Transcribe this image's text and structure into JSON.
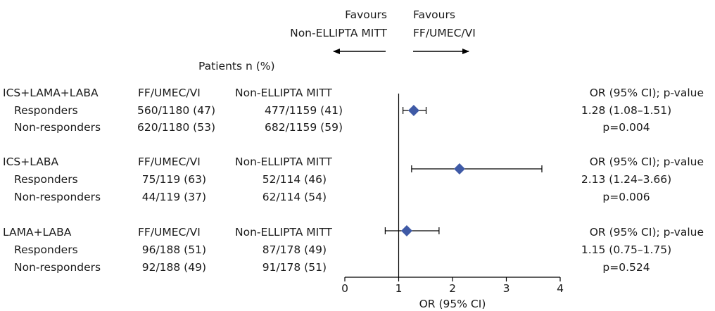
{
  "header": {
    "favours_left_line1": "Favours",
    "favours_left_line2": "Non-ELLIPTA MITT",
    "favours_right_line1": "Favours",
    "favours_right_line2": "FF/UMEC/VI",
    "patients_heading": "Patients n (%)"
  },
  "groups": [
    {
      "name": "ICS+LAMA+LABA",
      "col_a": "FF/UMEC/VI",
      "col_b": "Non-ELLIPTA MITT",
      "or_header": "OR (95% CI); p-value",
      "rows": [
        {
          "label": "Responders",
          "a": "560/1180 (47)",
          "b": "477/1159 (41)"
        },
        {
          "label": "Non-responders",
          "a": "620/1180 (53)",
          "b": "682/1159 (59)"
        }
      ],
      "or_text": "1.28 (1.08–1.51)",
      "p_text": "p=0.004"
    },
    {
      "name": "ICS+LABA",
      "col_a": "FF/UMEC/VI",
      "col_b": "Non-ELLIPTA MITT",
      "or_header": "OR (95% CI); p-value",
      "rows": [
        {
          "label": "Responders",
          "a": "75/119 (63)",
          "b": "52/114 (46)"
        },
        {
          "label": "Non-responders",
          "a": "44/119 (37)",
          "b": "62/114 (54)"
        }
      ],
      "or_text": "2.13 (1.24–3.66)",
      "p_text": "p=0.006"
    },
    {
      "name": "LAMA+LABA",
      "col_a": "FF/UMEC/VI",
      "col_b": "Non-ELLIPTA MITT",
      "or_header": "OR (95% CI); p-value",
      "rows": [
        {
          "label": "Responders",
          "a": "96/188 (51)",
          "b": "87/178 (49)"
        },
        {
          "label": "Non-responders",
          "a": "92/188 (49)",
          "b": "91/178 (51)"
        }
      ],
      "or_text": "1.15 (0.75–1.75)",
      "p_text": "p=0.524"
    }
  ],
  "chart_data": {
    "type": "scatter",
    "subtype": "forest-plot",
    "xlabel": "OR (95% CI)",
    "xlim": [
      0,
      4
    ],
    "xticks": [
      "0",
      "1",
      "2",
      "3",
      "4"
    ],
    "reference_line": 1,
    "marker": "diamond",
    "marker_color": "#3f5aa6",
    "points": [
      {
        "group": "ICS+LAMA+LABA",
        "or": 1.28,
        "ci_low": 1.08,
        "ci_high": 1.51
      },
      {
        "group": "ICS+LABA",
        "or": 2.13,
        "ci_low": 1.24,
        "ci_high": 3.66
      },
      {
        "group": "LAMA+LABA",
        "or": 1.15,
        "ci_low": 0.75,
        "ci_high": 1.75
      }
    ]
  }
}
